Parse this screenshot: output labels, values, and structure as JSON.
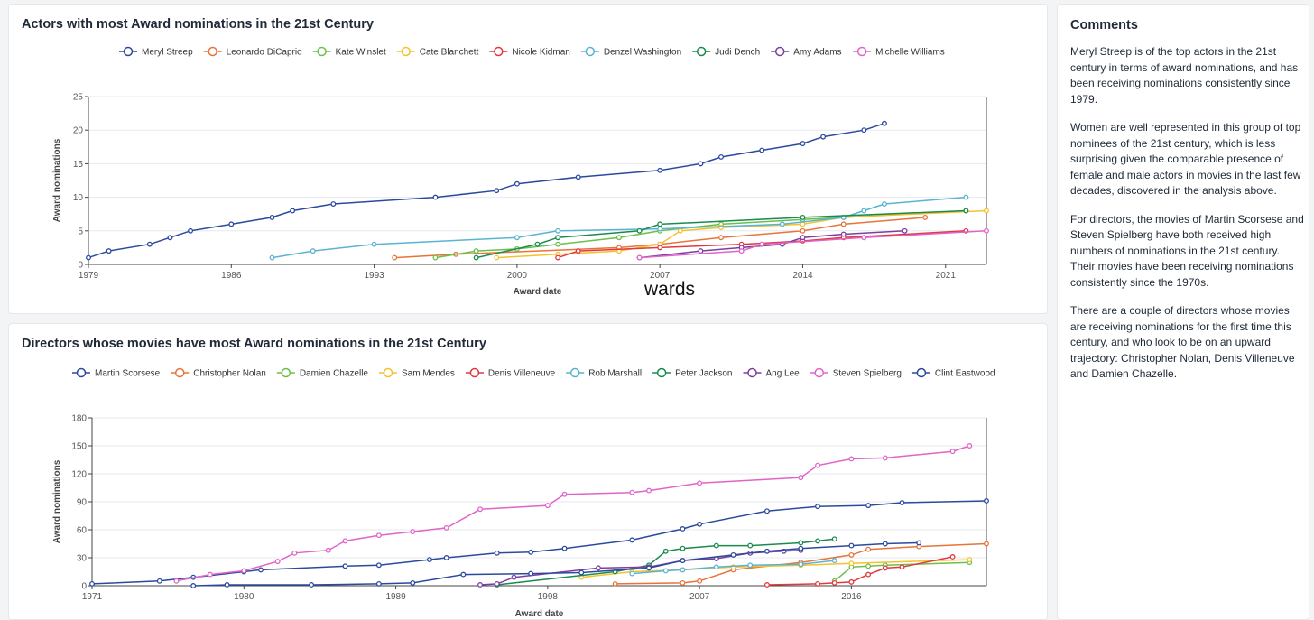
{
  "comments": {
    "title": "Comments",
    "paragraphs": [
      "Meryl Streep is of the top actors in the 21st century in terms of award nominations, and has been receiving nominations consistently since 1979.",
      "Women are well represented in this group of top nominees of the 21st century, which is less surprising given the comparable presence of female and male actors in movies in the last few decades, discovered in the analysis above.",
      "For directors, the movies of Martin Scorsese and Steven Spielberg have both received high numbers of nominations in the 21st century. Their movies have been receiving nominations consistently since the 1970s.",
      "There are a couple of directors whose movies are receiving nominations for the first time this century, and who look to be on an upward trajectory: Christopher Nolan, Denis Villeneuve and Damien Chazelle."
    ]
  },
  "chart_data": [
    {
      "type": "line",
      "title": "Actors with most Award nominations in the 21st Century",
      "xlabel": "Award date",
      "ylabel": "Award nominations",
      "xlim": [
        1979,
        2023
      ],
      "ylim": [
        0,
        25
      ],
      "xticks": [
        1979,
        1986,
        1993,
        2000,
        2007,
        2014,
        2021
      ],
      "yticks": [
        0,
        5,
        10,
        15,
        20,
        25
      ],
      "grid": true,
      "legend": "top-center",
      "annotation": "wards",
      "series": [
        {
          "name": "Meryl Streep",
          "color": "#2b4a9e",
          "points": [
            [
              1979,
              1
            ],
            [
              1980,
              2
            ],
            [
              1982,
              3
            ],
            [
              1983,
              4
            ],
            [
              1984,
              5
            ],
            [
              1986,
              6
            ],
            [
              1988,
              7
            ],
            [
              1989,
              8
            ],
            [
              1991,
              9
            ],
            [
              1996,
              10
            ],
            [
              1999,
              11
            ],
            [
              2000,
              12
            ],
            [
              2003,
              13
            ],
            [
              2007,
              14
            ],
            [
              2009,
              15
            ],
            [
              2010,
              16
            ],
            [
              2012,
              17
            ],
            [
              2014,
              18
            ],
            [
              2015,
              19
            ],
            [
              2017,
              20
            ],
            [
              2018,
              21
            ]
          ]
        },
        {
          "name": "Leonardo DiCaprio",
          "color": "#e8743b",
          "points": [
            [
              1994,
              1
            ],
            [
              1997,
              1.5
            ],
            [
              2005,
              2.5
            ],
            [
              2007,
              3
            ],
            [
              2010,
              4
            ],
            [
              2014,
              5
            ],
            [
              2016,
              6
            ],
            [
              2020,
              7
            ]
          ]
        },
        {
          "name": "Kate Winslet",
          "color": "#6cbf4a",
          "points": [
            [
              1996,
              1
            ],
            [
              1998,
              2
            ],
            [
              2000,
              2.3
            ],
            [
              2002,
              3
            ],
            [
              2005,
              4
            ],
            [
              2007,
              5
            ],
            [
              2010,
              6
            ],
            [
              2014,
              6.7
            ],
            [
              2016,
              7
            ],
            [
              2022,
              8
            ]
          ]
        },
        {
          "name": "Cate Blanchett",
          "color": "#f5c12e",
          "points": [
            [
              1999,
              1
            ],
            [
              2002,
              1.5
            ],
            [
              2005,
              2
            ],
            [
              2007,
              3
            ],
            [
              2008,
              5
            ],
            [
              2010,
              5.5
            ],
            [
              2014,
              6
            ],
            [
              2016,
              7
            ],
            [
              2023,
              8
            ]
          ]
        },
        {
          "name": "Nicole Kidman",
          "color": "#e0393e",
          "points": [
            [
              2002,
              1
            ],
            [
              2003,
              2
            ],
            [
              2007,
              2.5
            ],
            [
              2011,
              3
            ],
            [
              2014,
              3.5
            ],
            [
              2016,
              4
            ],
            [
              2022,
              5
            ]
          ]
        },
        {
          "name": "Denzel Washington",
          "color": "#5ab4d1",
          "points": [
            [
              1988,
              1
            ],
            [
              1990,
              2
            ],
            [
              1993,
              3
            ],
            [
              2000,
              4
            ],
            [
              2002,
              5
            ],
            [
              2007,
              5.3
            ],
            [
              2013,
              6
            ],
            [
              2016,
              7
            ],
            [
              2017,
              8
            ],
            [
              2018,
              9
            ],
            [
              2022,
              10
            ]
          ]
        },
        {
          "name": "Judi Dench",
          "color": "#1a8a4e",
          "points": [
            [
              1998,
              1
            ],
            [
              2001,
              3
            ],
            [
              2002,
              4
            ],
            [
              2006,
              5
            ],
            [
              2007,
              6
            ],
            [
              2014,
              7
            ],
            [
              2022,
              8
            ]
          ]
        },
        {
          "name": "Amy Adams",
          "color": "#7b3fa0",
          "points": [
            [
              2006,
              1
            ],
            [
              2009,
              2
            ],
            [
              2011,
              2.5
            ],
            [
              2013,
              3
            ],
            [
              2014,
              4
            ],
            [
              2016,
              4.5
            ],
            [
              2019,
              5
            ]
          ]
        },
        {
          "name": "Michelle Williams",
          "color": "#e065c8",
          "points": [
            [
              2006,
              1
            ],
            [
              2011,
              2
            ],
            [
              2012,
              3
            ],
            [
              2017,
              4
            ],
            [
              2023,
              5
            ]
          ]
        }
      ]
    },
    {
      "type": "line",
      "title": "Directors whose movies have most Award nominations in the 21st Century",
      "xlabel": "Award date",
      "ylabel": "Award nominations",
      "xlim": [
        1971,
        2024
      ],
      "ylim": [
        0,
        180
      ],
      "xticks": [
        1971,
        1980,
        1989,
        1998,
        2007,
        2016
      ],
      "yticks": [
        0,
        30,
        60,
        90,
        120,
        150,
        180
      ],
      "grid": true,
      "legend": "top-center",
      "series": [
        {
          "name": "Martin Scorsese",
          "color": "#2b4a9e",
          "points": [
            [
              1971,
              2
            ],
            [
              1975,
              5
            ],
            [
              1977,
              9
            ],
            [
              1980,
              15
            ],
            [
              1981,
              17
            ],
            [
              1986,
              21
            ],
            [
              1988,
              22
            ],
            [
              1991,
              28
            ],
            [
              1992,
              30
            ],
            [
              1995,
              35
            ],
            [
              1997,
              36
            ],
            [
              1999,
              40
            ],
            [
              2003,
              49
            ],
            [
              2006,
              61
            ],
            [
              2007,
              66
            ],
            [
              2011,
              80
            ],
            [
              2014,
              85
            ],
            [
              2017,
              86
            ],
            [
              2019,
              89
            ],
            [
              2024,
              91
            ]
          ]
        },
        {
          "name": "Christopher Nolan",
          "color": "#e8743b",
          "points": [
            [
              2002,
              2
            ],
            [
              2006,
              3
            ],
            [
              2007,
              5
            ],
            [
              2009,
              17
            ],
            [
              2013,
              25
            ],
            [
              2016,
              33
            ],
            [
              2017,
              39
            ],
            [
              2020,
              42
            ],
            [
              2024,
              45
            ]
          ]
        },
        {
          "name": "Damien Chazelle",
          "color": "#6cbf4a",
          "points": [
            [
              2015,
              5
            ],
            [
              2016,
              20
            ],
            [
              2017,
              21
            ],
            [
              2018,
              22
            ],
            [
              2023,
              25
            ]
          ]
        },
        {
          "name": "Sam Mendes",
          "color": "#f5c12e",
          "points": [
            [
              2000,
              9
            ],
            [
              2003,
              15
            ],
            [
              2006,
              17
            ],
            [
              2009,
              20
            ],
            [
              2013,
              22
            ],
            [
              2016,
              24
            ],
            [
              2023,
              28
            ]
          ]
        },
        {
          "name": "Denis Villeneuve",
          "color": "#e0393e",
          "points": [
            [
              2011,
              1
            ],
            [
              2014,
              2
            ],
            [
              2015,
              3
            ],
            [
              2016,
              4
            ],
            [
              2017,
              12
            ],
            [
              2018,
              19
            ],
            [
              2019,
              20
            ],
            [
              2022,
              31
            ]
          ]
        },
        {
          "name": "Rob Marshall",
          "color": "#5ab4d1",
          "points": [
            [
              2003,
              13
            ],
            [
              2005,
              16
            ],
            [
              2006,
              17
            ],
            [
              2008,
              20
            ],
            [
              2010,
              22
            ],
            [
              2013,
              23
            ],
            [
              2015,
              27
            ]
          ]
        },
        {
          "name": "Peter Jackson",
          "color": "#1a8a4e",
          "points": [
            [
              1995,
              1
            ],
            [
              2002,
              15
            ],
            [
              2004,
              22
            ],
            [
              2005,
              37
            ],
            [
              2006,
              40
            ],
            [
              2008,
              43
            ],
            [
              2010,
              43
            ],
            [
              2013,
              46
            ],
            [
              2014,
              48
            ],
            [
              2015,
              50
            ]
          ]
        },
        {
          "name": "Ang Lee",
          "color": "#7b3fa0",
          "points": [
            [
              1994,
              1
            ],
            [
              1995,
              2
            ],
            [
              1996,
              9
            ],
            [
              2001,
              19
            ],
            [
              2004,
              20
            ],
            [
              2006,
              27
            ],
            [
              2008,
              29
            ],
            [
              2010,
              35
            ],
            [
              2012,
              37
            ],
            [
              2013,
              38
            ]
          ]
        },
        {
          "name": "Steven Spielberg",
          "color": "#e065c8",
          "points": [
            [
              1976,
              5
            ],
            [
              1978,
              12
            ],
            [
              1980,
              16
            ],
            [
              1982,
              26
            ],
            [
              1983,
              35
            ],
            [
              1985,
              38
            ],
            [
              1986,
              48
            ],
            [
              1988,
              54
            ],
            [
              1990,
              58
            ],
            [
              1992,
              62
            ],
            [
              1994,
              82
            ],
            [
              1998,
              86
            ],
            [
              1999,
              98
            ],
            [
              2003,
              100
            ],
            [
              2004,
              102
            ],
            [
              2007,
              110
            ],
            [
              2013,
              116
            ],
            [
              2014,
              129
            ],
            [
              2016,
              136
            ],
            [
              2018,
              137
            ],
            [
              2022,
              144
            ],
            [
              2023,
              150
            ]
          ]
        },
        {
          "name": "Clint Eastwood",
          "color": "#2b4a9e",
          "points": [
            [
              1977,
              0
            ],
            [
              1979,
              1
            ],
            [
              1984,
              1
            ],
            [
              1988,
              2
            ],
            [
              1990,
              3
            ],
            [
              1993,
              12
            ],
            [
              1997,
              13
            ],
            [
              2000,
              14
            ],
            [
              2004,
              19
            ],
            [
              2006,
              27
            ],
            [
              2009,
              33
            ],
            [
              2011,
              37
            ],
            [
              2013,
              40
            ],
            [
              2016,
              43
            ],
            [
              2018,
              45
            ],
            [
              2020,
              46
            ]
          ]
        }
      ]
    }
  ]
}
